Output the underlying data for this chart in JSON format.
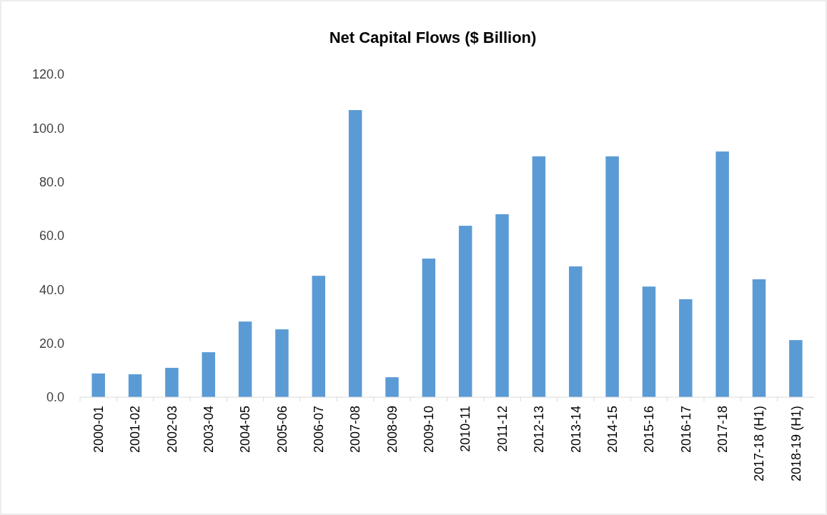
{
  "chart_data": {
    "type": "bar",
    "title": "Net Capital Flows ($ Billion)",
    "categories": [
      "2000-01",
      "2001-02",
      "2002-03",
      "2003-04",
      "2004-05",
      "2005-06",
      "2006-07",
      "2007-08",
      "2008-09",
      "2009-10",
      "2010-11",
      "2011-12",
      "2012-13",
      "2013-14",
      "2014-15",
      "2015-16",
      "2016-17",
      "2017-18",
      "2017-18 (H1)",
      "2018-19 (H1)"
    ],
    "values": [
      8.8,
      8.5,
      10.9,
      16.7,
      28.1,
      25.2,
      45.1,
      106.7,
      7.4,
      51.5,
      63.7,
      68.0,
      89.5,
      48.6,
      89.5,
      41.1,
      36.4,
      91.3,
      43.8,
      21.2
    ],
    "color": "#5b9bd5",
    "ylim": [
      0,
      120
    ],
    "yticks": [
      {
        "value": 0,
        "label": "0.0"
      },
      {
        "value": 20,
        "label": "20.0"
      },
      {
        "value": 40,
        "label": "40.0"
      },
      {
        "value": 60,
        "label": "60.0"
      },
      {
        "value": 80,
        "label": "80.0"
      },
      {
        "value": 100,
        "label": "100.0"
      },
      {
        "value": 120,
        "label": "120.0"
      }
    ]
  }
}
